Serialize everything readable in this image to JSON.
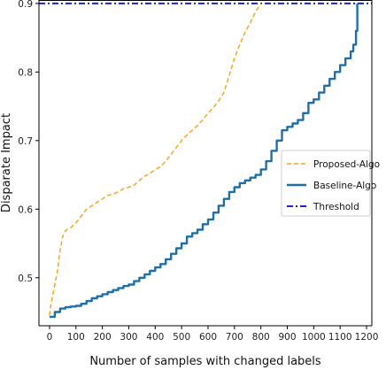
{
  "chart_data": {
    "type": "line",
    "title": "",
    "xlabel": "Number of samples with changed labels",
    "ylabel": "Disparate Impact",
    "xlim": [
      -40,
      1220
    ],
    "ylim": [
      0.43,
      0.905
    ],
    "xticks": [
      0,
      100,
      200,
      300,
      400,
      500,
      600,
      700,
      800,
      900,
      1000,
      1100,
      1200
    ],
    "yticks": [
      0.5,
      0.6,
      0.7,
      0.8,
      0.9
    ],
    "xtick_labels": [
      "0",
      "100",
      "200",
      "300",
      "400",
      "500",
      "600",
      "700",
      "800",
      "900",
      "1000",
      "1100",
      "1200"
    ],
    "ytick_labels": [
      "0.5",
      "0.6",
      "0.7",
      "0.8",
      "0.9"
    ],
    "grid": false,
    "legend_position": "right",
    "series": [
      {
        "name": "Proposed-Algo",
        "color": "#f5a623",
        "style": "dashed",
        "x": [
          0,
          5,
          10,
          15,
          20,
          25,
          30,
          35,
          40,
          45,
          50,
          55,
          60,
          65,
          70,
          80,
          100,
          120,
          140,
          160,
          180,
          200,
          220,
          240,
          260,
          280,
          300,
          320,
          340,
          360,
          380,
          400,
          420,
          440,
          460,
          480,
          500,
          520,
          540,
          560,
          580,
          600,
          620,
          640,
          660,
          680,
          700,
          720,
          740,
          760,
          780,
          800
        ],
        "y": [
          0.445,
          0.46,
          0.47,
          0.48,
          0.49,
          0.5,
          0.51,
          0.525,
          0.54,
          0.55,
          0.56,
          0.565,
          0.568,
          0.57,
          0.571,
          0.573,
          0.58,
          0.59,
          0.6,
          0.605,
          0.61,
          0.615,
          0.62,
          0.622,
          0.625,
          0.63,
          0.632,
          0.635,
          0.642,
          0.648,
          0.652,
          0.658,
          0.662,
          0.67,
          0.68,
          0.69,
          0.7,
          0.708,
          0.715,
          0.722,
          0.73,
          0.74,
          0.748,
          0.758,
          0.77,
          0.795,
          0.82,
          0.84,
          0.858,
          0.872,
          0.888,
          0.9
        ]
      },
      {
        "name": "Baseline-Algo",
        "color": "#1f6fa6",
        "style": "solid",
        "x": [
          0,
          20,
          40,
          60,
          80,
          100,
          120,
          140,
          160,
          180,
          200,
          220,
          240,
          260,
          280,
          300,
          320,
          340,
          360,
          380,
          400,
          420,
          440,
          460,
          480,
          500,
          520,
          540,
          560,
          580,
          600,
          620,
          640,
          660,
          680,
          700,
          720,
          740,
          760,
          780,
          800,
          820,
          840,
          860,
          880,
          900,
          920,
          940,
          960,
          980,
          1000,
          1020,
          1040,
          1060,
          1080,
          1100,
          1120,
          1140,
          1150,
          1160,
          1165
        ],
        "y": [
          0.443,
          0.45,
          0.455,
          0.457,
          0.458,
          0.459,
          0.462,
          0.466,
          0.47,
          0.473,
          0.476,
          0.479,
          0.482,
          0.485,
          0.488,
          0.49,
          0.495,
          0.5,
          0.505,
          0.51,
          0.515,
          0.52,
          0.527,
          0.535,
          0.543,
          0.55,
          0.56,
          0.565,
          0.57,
          0.578,
          0.585,
          0.595,
          0.605,
          0.615,
          0.625,
          0.632,
          0.638,
          0.642,
          0.646,
          0.65,
          0.658,
          0.67,
          0.685,
          0.7,
          0.715,
          0.72,
          0.725,
          0.73,
          0.74,
          0.755,
          0.76,
          0.77,
          0.78,
          0.79,
          0.8,
          0.81,
          0.82,
          0.83,
          0.84,
          0.86,
          0.9
        ]
      },
      {
        "name": "Threshold",
        "color": "#1a24cc",
        "style": "dashdot",
        "x": [
          -40,
          1220
        ],
        "y": [
          0.9,
          0.9
        ]
      }
    ]
  }
}
